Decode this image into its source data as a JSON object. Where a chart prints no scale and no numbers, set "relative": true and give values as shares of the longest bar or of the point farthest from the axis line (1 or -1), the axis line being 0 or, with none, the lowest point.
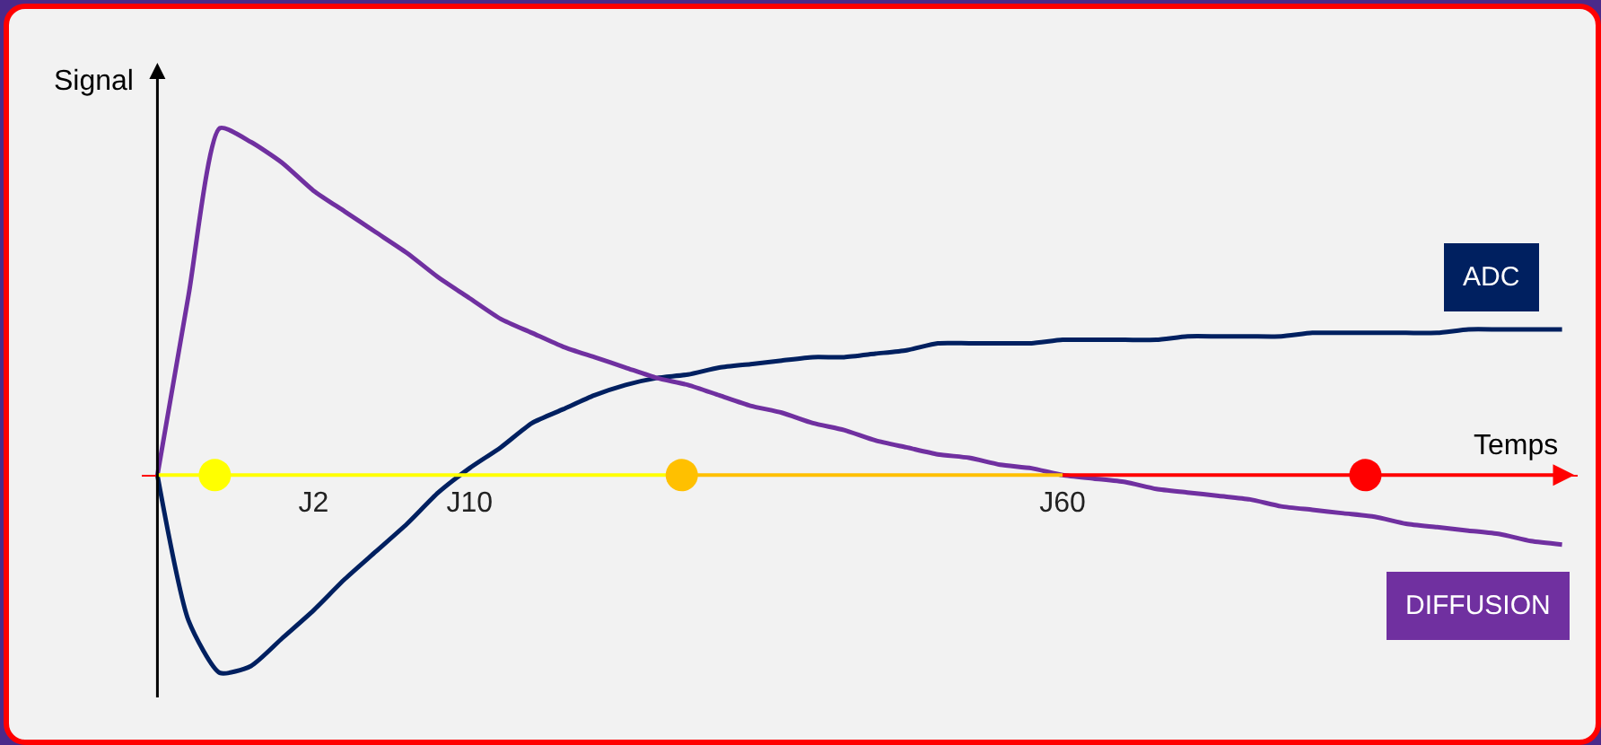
{
  "chart_data": {
    "type": "line",
    "relative": true,
    "xlabel": "Temps",
    "ylabel": "Signal",
    "categories": [
      null,
      null,
      null,
      null,
      null,
      "J2",
      null,
      null,
      null,
      null,
      "J10",
      null,
      null,
      null,
      null,
      null,
      null,
      null,
      null,
      null,
      null,
      null,
      null,
      null,
      null,
      null,
      null,
      null,
      null,
      "J60",
      null,
      null,
      null,
      null,
      null,
      null,
      null,
      null,
      null,
      null,
      null,
      null,
      null,
      null,
      null,
      null
    ],
    "series": [
      {
        "name": "ADC",
        "color": "#002060",
        "values": [
          0,
          -0.42,
          -0.57,
          -0.55,
          -0.47,
          -0.39,
          -0.3,
          -0.22,
          -0.14,
          -0.05,
          0.02,
          0.08,
          0.15,
          0.19,
          0.23,
          0.26,
          0.28,
          0.29,
          0.31,
          0.32,
          0.33,
          0.34,
          0.34,
          0.35,
          0.36,
          0.38,
          0.38,
          0.38,
          0.38,
          0.39,
          0.39,
          0.39,
          0.39,
          0.4,
          0.4,
          0.4,
          0.4,
          0.41,
          0.41,
          0.41,
          0.41,
          0.41,
          0.42,
          0.42,
          0.42,
          0.42
        ]
      },
      {
        "name": "DIFFUSION",
        "color": "#7030a0",
        "values": [
          0,
          0.52,
          1,
          0.96,
          0.9,
          0.82,
          0.76,
          0.7,
          0.64,
          0.57,
          0.51,
          0.45,
          0.41,
          0.37,
          0.34,
          0.31,
          0.28,
          0.26,
          0.23,
          0.2,
          0.18,
          0.15,
          0.13,
          0.1,
          0.08,
          0.06,
          0.05,
          0.03,
          0.02,
          0,
          -0.01,
          -0.02,
          -0.04,
          -0.05,
          -0.06,
          -0.07,
          -0.09,
          -0.1,
          -0.11,
          -0.12,
          -0.14,
          -0.15,
          -0.16,
          -0.17,
          -0.19,
          -0.2
        ]
      }
    ],
    "legend": false,
    "marker": "none",
    "line_style": "solid"
  }
}
